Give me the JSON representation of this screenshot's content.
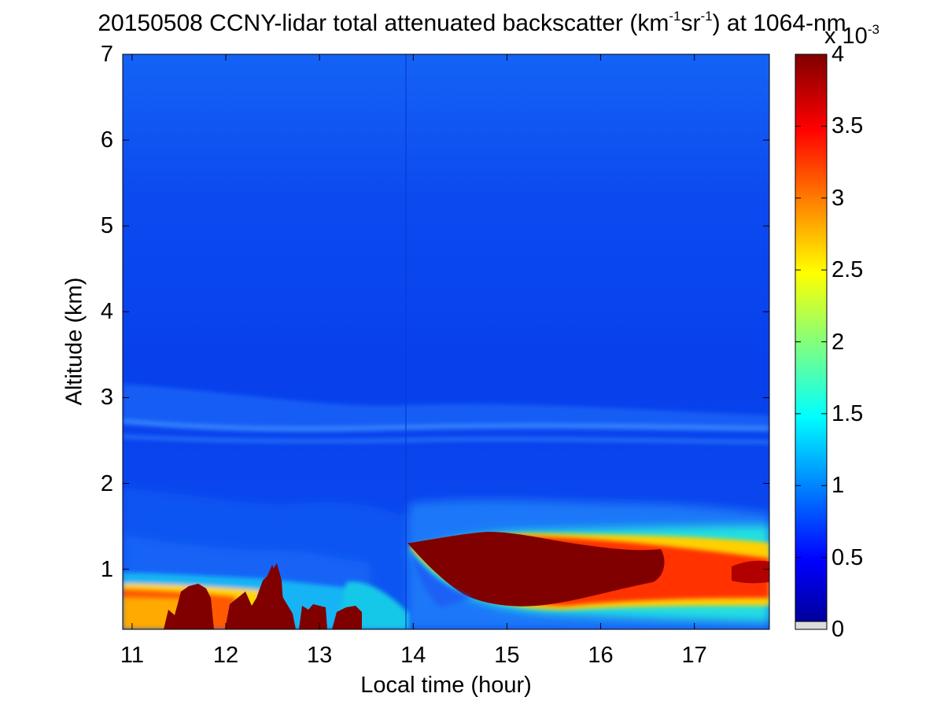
{
  "chart_data": {
    "type": "heatmap",
    "title_parts": {
      "prefix": "20150508 CCNY-lidar total attenuated backscatter (km",
      "exp1": "-1",
      "mid": "sr",
      "exp2": "-1",
      "suffix": ") at 1064-nm"
    },
    "xlabel": "Local time (hour)",
    "ylabel": "Altitude (km)",
    "xlim": [
      10.9,
      17.8
    ],
    "ylim": [
      0.3,
      7
    ],
    "x_ticks": [
      "11",
      "12",
      "13",
      "14",
      "15",
      "16",
      "17"
    ],
    "y_ticks": [
      "1",
      "2",
      "3",
      "4",
      "5",
      "6",
      "7"
    ],
    "colorbar": {
      "range": [
        0,
        4
      ],
      "ticks": [
        "0",
        "0.5",
        "1",
        "1.5",
        "2",
        "2.5",
        "3",
        "3.5",
        "4"
      ],
      "multiplier_base": "x 10",
      "multiplier_exp": "-3",
      "colormap": "jet",
      "colors": [
        "#00008f",
        "#0000ff",
        "#00ffff",
        "#ffff00",
        "#ff0000",
        "#800000"
      ]
    },
    "features": [
      {
        "name": "free troposphere background",
        "value": 0.3
      },
      {
        "name": "residual aerosol layer",
        "altitude_km": 2.65,
        "time_range": [
          10.9,
          17.8
        ],
        "value": 0.8
      },
      {
        "name": "boundary layer cloud",
        "time_range": [
          13.95,
          17.8
        ],
        "altitude_range": [
          0.6,
          1.3
        ],
        "value": 4.0
      },
      {
        "name": "low cloud/aerosol spikes",
        "time_range": [
          10.9,
          13.5
        ],
        "altitude_range": [
          0.3,
          1.05
        ],
        "value": 4.0
      }
    ]
  }
}
